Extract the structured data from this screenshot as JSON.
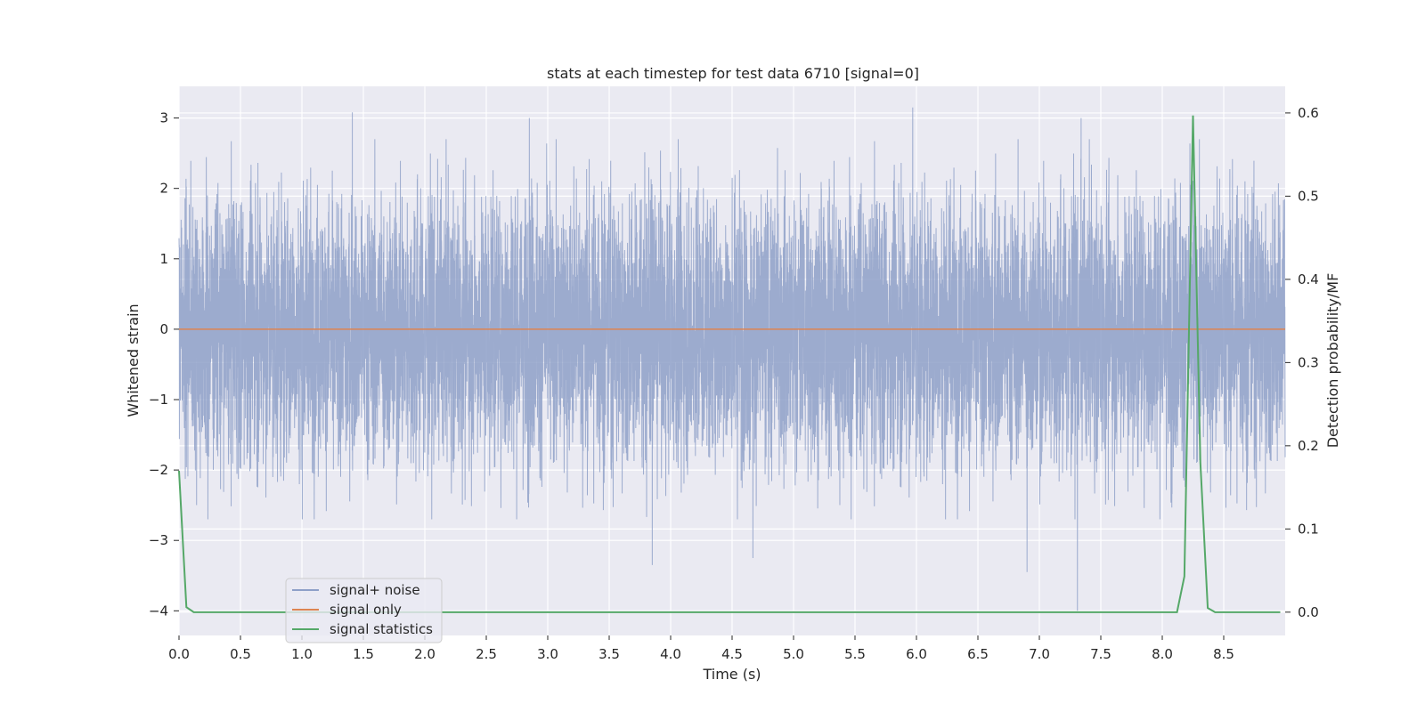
{
  "chart_data": {
    "type": "line",
    "title": "stats at each timestep for test data 6710 [signal=0]",
    "xlabel": "Time (s)",
    "ylabel": "Whitened strain",
    "y2label": "Detection probability/MF",
    "xlim": [
      0.0,
      9.0
    ],
    "ylim": [
      -4.35,
      3.45
    ],
    "y2lim": [
      -0.028,
      0.632
    ],
    "xticks": [
      0.0,
      0.5,
      1.0,
      1.5,
      2.0,
      2.5,
      3.0,
      3.5,
      4.0,
      4.5,
      5.0,
      5.5,
      6.0,
      6.5,
      7.0,
      7.5,
      8.0,
      8.5
    ],
    "xtick_labels": [
      "0.0",
      "0.5",
      "1.0",
      "1.5",
      "2.0",
      "2.5",
      "3.0",
      "3.5",
      "4.0",
      "4.5",
      "5.0",
      "5.5",
      "6.0",
      "6.5",
      "7.0",
      "7.5",
      "8.0",
      "8.5"
    ],
    "yticks": [
      3,
      2,
      1,
      0,
      -1,
      -2,
      -3,
      -4
    ],
    "ytick_labels": [
      "3",
      "2",
      "1",
      "0",
      "−1",
      "−2",
      "−3",
      "−4"
    ],
    "y2ticks": [
      0.6,
      0.5,
      0.4,
      0.3,
      0.2,
      0.1,
      0.0
    ],
    "y2tick_labels": [
      "0.6",
      "0.5",
      "0.4",
      "0.3",
      "0.2",
      "0.1",
      "0.0"
    ],
    "grid": true,
    "legend_placement": "lower-left",
    "series": [
      {
        "name": "signal+ noise",
        "color": "#8ea0c8",
        "axis": "left",
        "kind": "noise",
        "description_values": {
          "envelope_low": -2.0,
          "envelope_high": 2.0,
          "extremes": [
            [
              7.31,
              -4.0
            ],
            [
              5.97,
              3.15
            ],
            [
              1.41,
              3.08
            ],
            [
              2.85,
              3.0
            ],
            [
              7.34,
              3.0
            ],
            [
              3.85,
              -3.35
            ],
            [
              6.9,
              -3.45
            ],
            [
              4.67,
              -3.25
            ]
          ]
        }
      },
      {
        "name": "signal only",
        "color": "#dd8452",
        "axis": "left",
        "x": [
          0.0,
          9.0
        ],
        "values": [
          0.0,
          0.0
        ]
      },
      {
        "name": "signal statistics",
        "color": "#55a868",
        "axis": "right",
        "x": [
          0.0,
          0.06,
          0.12,
          0.18,
          8.12,
          8.18,
          8.25,
          8.31,
          8.37,
          8.43,
          8.96
        ],
        "values": [
          0.17,
          0.006,
          0.0,
          0.0,
          0.0,
          0.043,
          0.597,
          0.18,
          0.005,
          0.0,
          0.0
        ]
      }
    ]
  }
}
